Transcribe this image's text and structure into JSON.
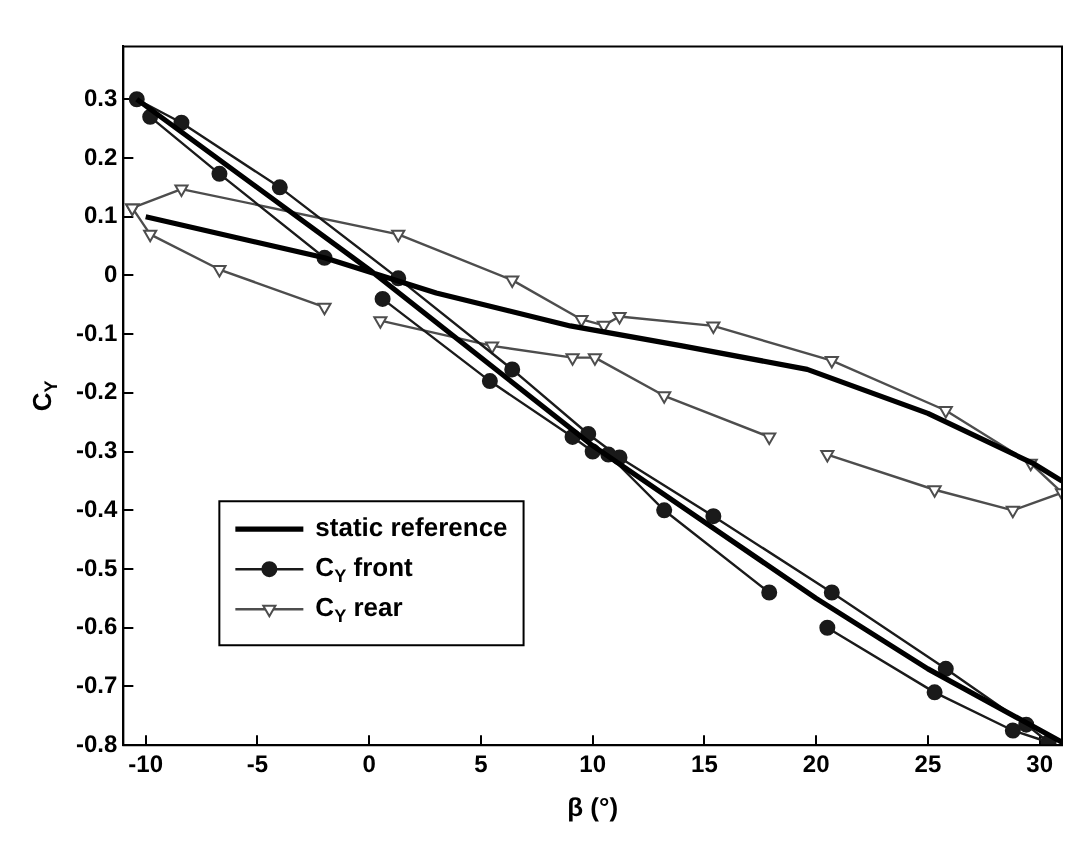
{
  "chart_data": {
    "type": "line",
    "xlabel": "β (°)",
    "ylabel": "C$_{Y}$",
    "xlim": [
      -11,
      31
    ],
    "ylim": [
      -0.8,
      0.39
    ],
    "xticks": [
      -10,
      -5,
      0,
      5,
      10,
      15,
      20,
      25,
      30
    ],
    "yticks": [
      -0.8,
      -0.7,
      -0.6,
      -0.5,
      -0.4,
      -0.3,
      -0.2,
      -0.1,
      0,
      0.1,
      0.2,
      0.3
    ],
    "grid": false,
    "legend": "bottom left",
    "series": [
      {
        "name": "static reference",
        "color": "#000000",
        "marker": "none",
        "x": [
          -10,
          -2,
          3,
          9,
          14,
          19.6,
          25,
          29.7,
          31,
          null,
          -10.4,
          0,
          10,
          20,
          25,
          31
        ],
        "values": [
          0.1,
          0.03,
          -0.03,
          -0.086,
          -0.12,
          -0.16,
          -0.235,
          -0.32,
          -0.35,
          null,
          0.3,
          0.01,
          -0.29,
          -0.55,
          -0.67,
          -0.795
        ]
      },
      {
        "name": "C$_{Y}$ front",
        "color": "#1a1a1a",
        "marker": "circle",
        "x": [
          -10.4,
          -8.4,
          -4,
          1.3,
          6.4,
          9.8,
          11.2,
          15.4,
          20.7,
          25.8,
          29.4,
          30.4,
          28.8,
          25.3,
          20.5,
          null,
          17.9,
          13.2,
          10.7,
          10,
          9.1,
          5.4,
          0.6,
          null,
          -2,
          -6.7,
          -9.8
        ],
        "values": [
          0.3,
          0.26,
          0.15,
          -0.005,
          -0.16,
          -0.27,
          -0.31,
          -0.41,
          -0.54,
          -0.67,
          -0.765,
          -0.795,
          -0.775,
          -0.71,
          -0.6,
          null,
          -0.54,
          -0.4,
          -0.305,
          -0.3,
          -0.275,
          -0.18,
          -0.04,
          null,
          0.03,
          0.173,
          0.27
        ]
      },
      {
        "name": "C$_{Y}$ rear",
        "color": "#4d4d4d",
        "marker": "triangle",
        "x": [
          -10.6,
          -8.4,
          1.3,
          6.4,
          9.5,
          10.5,
          11.2,
          15.4,
          20.7,
          25.8,
          29.6,
          31,
          28.8,
          25.3,
          20.5,
          null,
          17.9,
          13.2,
          10.1,
          9.1,
          5.5,
          0.5,
          null,
          -2,
          -6.7,
          -9.8,
          -10.6
        ],
        "values": [
          0.115,
          0.147,
          0.07,
          -0.008,
          -0.075,
          -0.085,
          -0.07,
          -0.086,
          -0.145,
          -0.23,
          -0.32,
          -0.37,
          -0.4,
          -0.365,
          -0.305,
          null,
          -0.275,
          -0.205,
          -0.14,
          -0.14,
          -0.12,
          -0.077,
          null,
          -0.054,
          0.01,
          0.07,
          0.115
        ]
      }
    ]
  }
}
